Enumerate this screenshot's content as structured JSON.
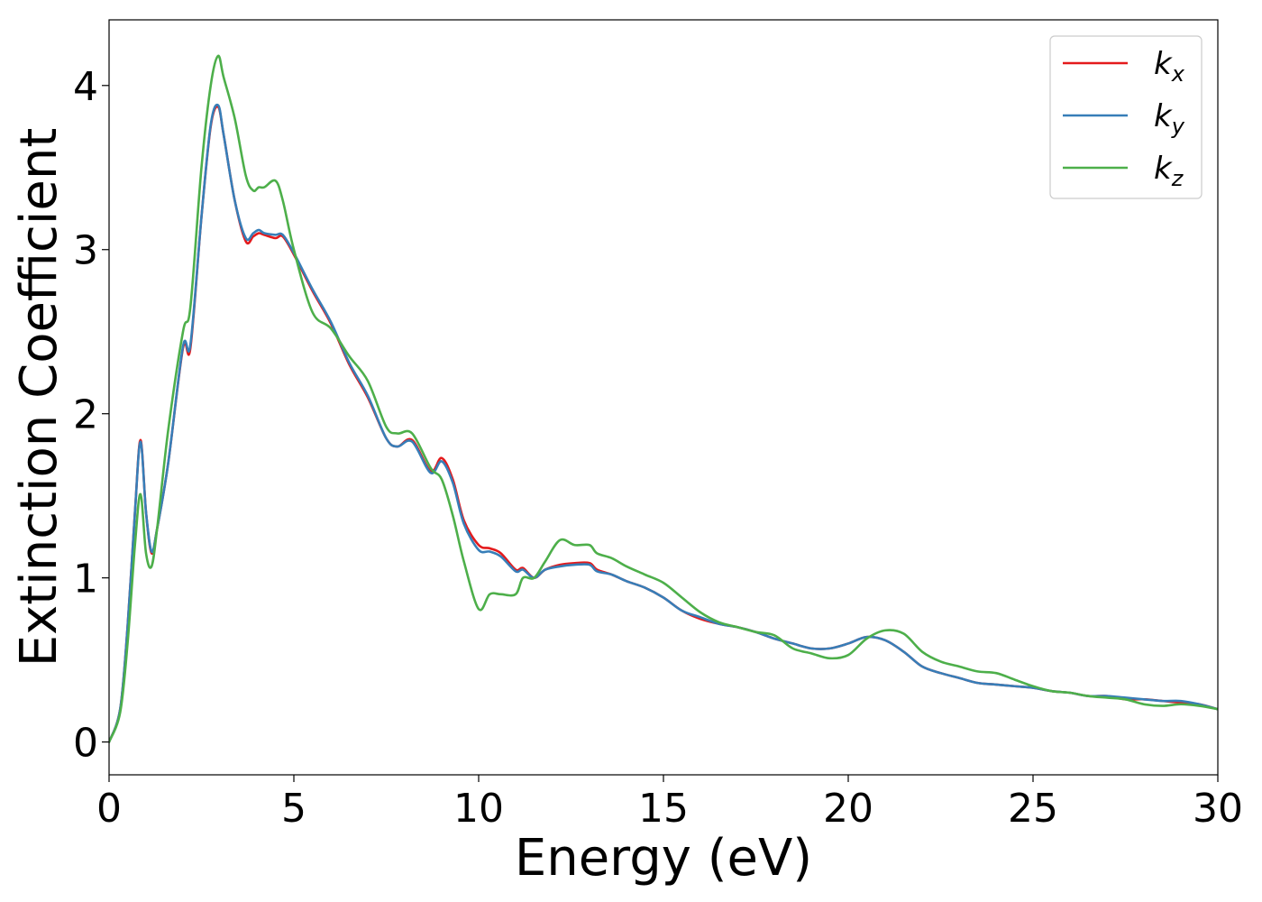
{
  "chart_data": {
    "type": "line",
    "title": "",
    "xlabel": "Energy (eV)",
    "ylabel": "Extinction Coefficient",
    "xlim": [
      0,
      30
    ],
    "ylim": [
      -0.2,
      4.4
    ],
    "xticks": [
      0,
      5,
      10,
      15,
      20,
      25,
      30
    ],
    "yticks": [
      0,
      1,
      2,
      3,
      4
    ],
    "grid": false,
    "legend_position": "top-right",
    "series": [
      {
        "name": "k_x",
        "label_main": "k",
        "label_sub": "x",
        "color": "#e41a1c",
        "x": [
          0,
          0.3,
          0.5,
          0.7,
          0.85,
          1.0,
          1.15,
          1.3,
          1.6,
          2.0,
          2.2,
          2.5,
          2.75,
          2.95,
          3.1,
          3.4,
          3.7,
          3.9,
          4.05,
          4.2,
          4.5,
          4.7,
          5.0,
          5.5,
          6.0,
          6.5,
          7.0,
          7.5,
          7.8,
          8.2,
          8.7,
          9.0,
          9.3,
          9.6,
          10.0,
          10.3,
          10.6,
          11.0,
          11.2,
          11.5,
          11.8,
          12.2,
          12.6,
          13.0,
          13.2,
          13.6,
          14.0,
          14.5,
          15.0,
          15.5,
          16.0,
          16.5,
          17.0,
          17.5,
          18.0,
          18.5,
          19.0,
          19.5,
          20.0,
          20.5,
          21.0,
          21.5,
          22.0,
          22.5,
          23.0,
          23.5,
          24.0,
          24.5,
          25.0,
          25.5,
          26.0,
          26.5,
          27.0,
          27.5,
          28.0,
          28.5,
          29.0,
          29.5,
          30.0
        ],
        "y": [
          0.0,
          0.2,
          0.7,
          1.4,
          1.84,
          1.4,
          1.15,
          1.3,
          1.7,
          2.4,
          2.4,
          3.2,
          3.75,
          3.87,
          3.7,
          3.3,
          3.05,
          3.08,
          3.1,
          3.09,
          3.07,
          3.08,
          2.97,
          2.75,
          2.55,
          2.3,
          2.1,
          1.85,
          1.8,
          1.84,
          1.65,
          1.73,
          1.6,
          1.35,
          1.2,
          1.18,
          1.15,
          1.05,
          1.06,
          1.0,
          1.05,
          1.08,
          1.09,
          1.09,
          1.05,
          1.02,
          0.98,
          0.94,
          0.88,
          0.8,
          0.75,
          0.72,
          0.7,
          0.67,
          0.63,
          0.6,
          0.57,
          0.57,
          0.6,
          0.64,
          0.62,
          0.55,
          0.46,
          0.42,
          0.39,
          0.36,
          0.35,
          0.34,
          0.33,
          0.31,
          0.3,
          0.28,
          0.28,
          0.26,
          0.26,
          0.25,
          0.24,
          0.23,
          0.2
        ]
      },
      {
        "name": "k_y",
        "label_main": "k",
        "label_sub": "y",
        "color": "#377eb8",
        "x": [
          0,
          0.3,
          0.5,
          0.7,
          0.85,
          1.0,
          1.15,
          1.3,
          1.6,
          2.0,
          2.2,
          2.5,
          2.75,
          2.95,
          3.1,
          3.4,
          3.7,
          3.9,
          4.05,
          4.2,
          4.5,
          4.7,
          5.0,
          5.5,
          6.0,
          6.5,
          7.0,
          7.5,
          7.8,
          8.2,
          8.7,
          9.0,
          9.3,
          9.6,
          10.0,
          10.3,
          10.6,
          11.0,
          11.2,
          11.5,
          11.8,
          12.2,
          12.6,
          13.0,
          13.2,
          13.6,
          14.0,
          14.5,
          15.0,
          15.5,
          16.0,
          16.5,
          17.0,
          17.5,
          18.0,
          18.5,
          19.0,
          19.5,
          20.0,
          20.5,
          21.0,
          21.5,
          22.0,
          22.5,
          23.0,
          23.5,
          24.0,
          24.5,
          25.0,
          25.5,
          26.0,
          26.5,
          27.0,
          27.5,
          28.0,
          28.5,
          29.0,
          29.5,
          30.0
        ],
        "y": [
          0.0,
          0.2,
          0.7,
          1.4,
          1.83,
          1.4,
          1.16,
          1.3,
          1.7,
          2.41,
          2.42,
          3.2,
          3.76,
          3.88,
          3.7,
          3.3,
          3.07,
          3.1,
          3.12,
          3.1,
          3.09,
          3.09,
          2.98,
          2.76,
          2.56,
          2.31,
          2.11,
          1.85,
          1.8,
          1.83,
          1.64,
          1.71,
          1.58,
          1.33,
          1.17,
          1.16,
          1.13,
          1.04,
          1.05,
          1.0,
          1.05,
          1.07,
          1.08,
          1.08,
          1.04,
          1.02,
          0.98,
          0.94,
          0.88,
          0.8,
          0.76,
          0.72,
          0.7,
          0.67,
          0.63,
          0.6,
          0.57,
          0.57,
          0.6,
          0.64,
          0.62,
          0.55,
          0.46,
          0.42,
          0.39,
          0.36,
          0.35,
          0.34,
          0.33,
          0.31,
          0.3,
          0.28,
          0.28,
          0.27,
          0.26,
          0.25,
          0.25,
          0.23,
          0.2
        ]
      },
      {
        "name": "k_z",
        "label_main": "k",
        "label_sub": "z",
        "color": "#4daf4a",
        "x": [
          0,
          0.3,
          0.5,
          0.7,
          0.85,
          1.0,
          1.15,
          1.3,
          1.6,
          2.0,
          2.2,
          2.5,
          2.75,
          2.95,
          3.1,
          3.4,
          3.7,
          3.9,
          4.05,
          4.2,
          4.5,
          4.7,
          5.0,
          5.5,
          6.0,
          6.5,
          7.0,
          7.5,
          7.8,
          8.2,
          8.7,
          9.0,
          9.3,
          9.6,
          10.0,
          10.3,
          10.6,
          11.0,
          11.2,
          11.5,
          11.8,
          12.2,
          12.6,
          13.0,
          13.2,
          13.6,
          14.0,
          14.5,
          15.0,
          15.5,
          16.0,
          16.5,
          17.0,
          17.5,
          18.0,
          18.5,
          19.0,
          19.5,
          20.0,
          20.5,
          21.0,
          21.5,
          22.0,
          22.5,
          23.0,
          23.5,
          24.0,
          24.5,
          25.0,
          25.5,
          26.0,
          26.5,
          27.0,
          27.5,
          28.0,
          28.5,
          29.0,
          29.5,
          30.0
        ],
        "y": [
          0.0,
          0.18,
          0.6,
          1.2,
          1.51,
          1.15,
          1.07,
          1.3,
          1.9,
          2.5,
          2.65,
          3.5,
          4.0,
          4.18,
          4.05,
          3.8,
          3.45,
          3.36,
          3.38,
          3.38,
          3.42,
          3.3,
          3.0,
          2.62,
          2.52,
          2.35,
          2.2,
          1.92,
          1.88,
          1.88,
          1.67,
          1.6,
          1.38,
          1.1,
          0.81,
          0.9,
          0.9,
          0.9,
          1.0,
          1.0,
          1.1,
          1.23,
          1.2,
          1.2,
          1.15,
          1.12,
          1.07,
          1.02,
          0.97,
          0.88,
          0.79,
          0.73,
          0.7,
          0.67,
          0.65,
          0.57,
          0.54,
          0.51,
          0.53,
          0.63,
          0.68,
          0.66,
          0.55,
          0.49,
          0.46,
          0.43,
          0.42,
          0.38,
          0.34,
          0.31,
          0.3,
          0.28,
          0.27,
          0.26,
          0.23,
          0.22,
          0.23,
          0.22,
          0.2
        ]
      }
    ]
  }
}
